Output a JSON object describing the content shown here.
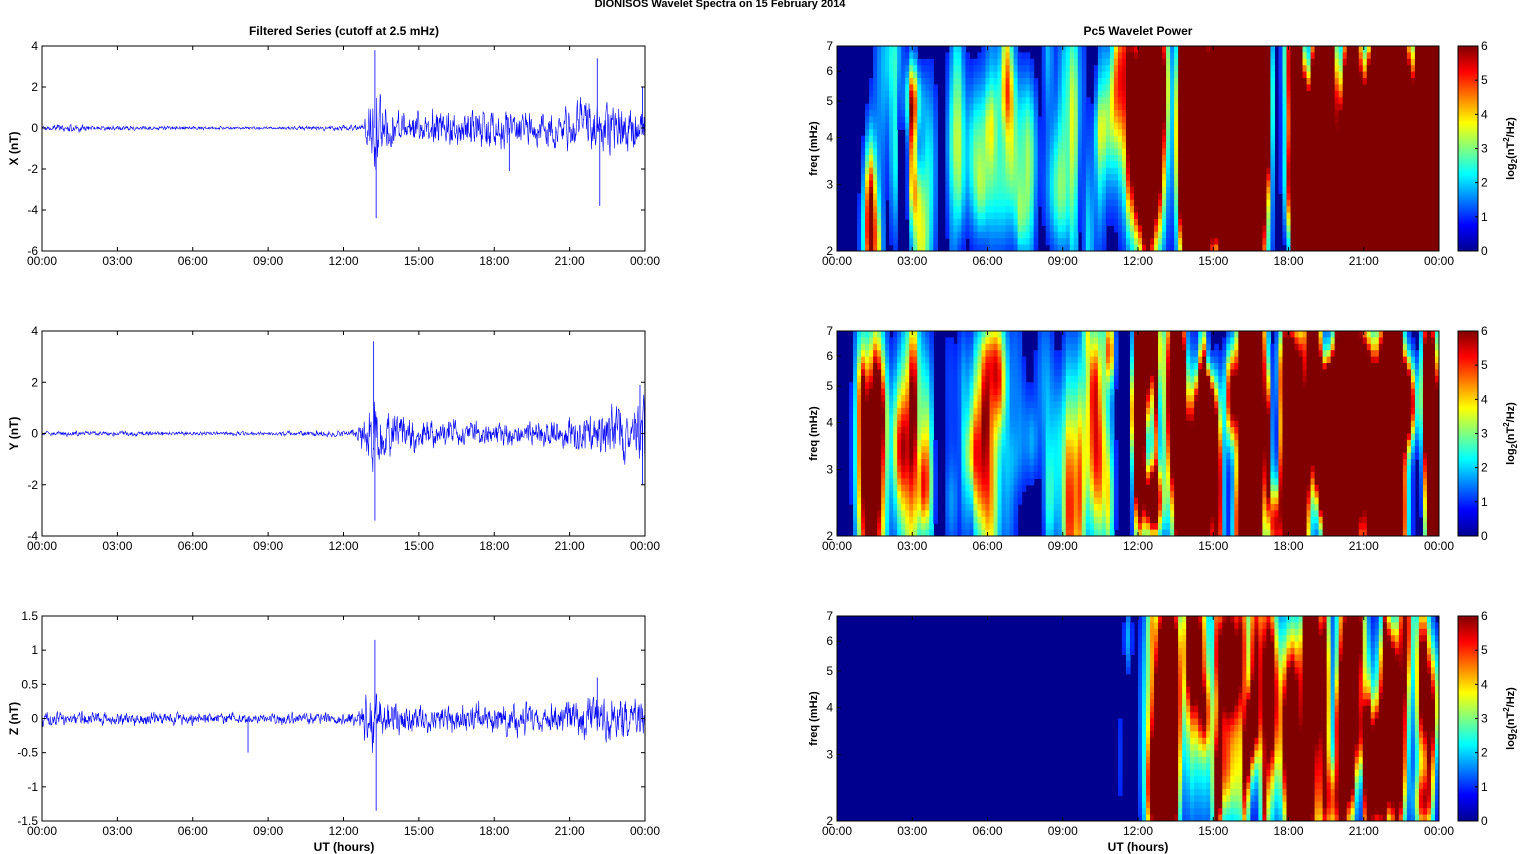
{
  "figure": {
    "suptitle": "DIONISOS Wavelet Spectra on 15 February  2014",
    "left_title": "Filtered Series (cutoff at 2.5 mHz)",
    "right_title": "Pc5 Wavelet Power",
    "xlabel": "UT (hours)"
  },
  "colors": {
    "trace": "#0000ff",
    "jet_low": "#00008f",
    "jet_high": "#800000"
  },
  "chart_data": [
    {
      "type": "line",
      "component": "X",
      "ylabel": "X (nT)",
      "ylim": [
        -6,
        4
      ],
      "yticks": [
        "4",
        "2",
        "0",
        "-2",
        "-4",
        "-6"
      ],
      "xticks": [
        "00:00",
        "03:00",
        "06:00",
        "09:00",
        "12:00",
        "15:00",
        "18:00",
        "21:00",
        "00:00"
      ],
      "x_range_hours": [
        0,
        24
      ],
      "envelope": [
        [
          0,
          0.1
        ],
        [
          1.2,
          0.3
        ],
        [
          2,
          0.15
        ],
        [
          5,
          0.12
        ],
        [
          9,
          0.08
        ],
        [
          12.8,
          0.2
        ],
        [
          13.2,
          2.5
        ],
        [
          13.3,
          3.8
        ],
        [
          13.6,
          1.2
        ],
        [
          15,
          1.0
        ],
        [
          17,
          1.1
        ],
        [
          18.2,
          1.4
        ],
        [
          19,
          0.9
        ],
        [
          21,
          1.3
        ],
        [
          22,
          2.0
        ],
        [
          22.3,
          1.5
        ],
        [
          23.5,
          1.3
        ],
        [
          24,
          1.0
        ]
      ],
      "spikes": [
        {
          "t": 13.25,
          "v": 3.8
        },
        {
          "t": 13.3,
          "v": -4.4
        },
        {
          "t": 22.1,
          "v": 3.4
        },
        {
          "t": 22.2,
          "v": -3.8
        },
        {
          "t": 18.6,
          "v": -2.1
        },
        {
          "t": 23.9,
          "v": 2.0
        },
        {
          "t": 24,
          "v": -1.2
        }
      ]
    },
    {
      "type": "heatmap",
      "component": "X",
      "ylabel": "freq (mHz)",
      "ylim": [
        2,
        7
      ],
      "yscale": "log",
      "yticks": [
        "2",
        "3",
        "4",
        "5",
        "6",
        "7"
      ],
      "xticks": [
        "00:00",
        "03:00",
        "06:00",
        "09:00",
        "12:00",
        "15:00",
        "18:00",
        "21:00",
        "00:00"
      ],
      "colorbar_label": "log2(nT2/Hz)",
      "clim": [
        0,
        6
      ],
      "colorbar_ticks": [
        "0",
        "1",
        "2",
        "3",
        "4",
        "5",
        "6"
      ],
      "activity": [
        [
          0,
          0
        ],
        [
          0.8,
          0.05
        ],
        [
          1.3,
          0.55
        ],
        [
          1.8,
          0.05
        ],
        [
          3.0,
          0.45
        ],
        [
          4,
          0.05
        ],
        [
          6.1,
          0.15
        ],
        [
          10.2,
          0.15
        ],
        [
          11,
          0.2
        ],
        [
          12,
          0.35
        ],
        [
          12.7,
          0.9
        ],
        [
          13.1,
          1.3
        ],
        [
          24,
          1.3
        ]
      ],
      "seed": 11
    },
    {
      "type": "line",
      "component": "Y",
      "ylabel": "Y (nT)",
      "ylim": [
        -4,
        4
      ],
      "yticks": [
        "4",
        "2",
        "0",
        "-2",
        "-4"
      ],
      "xticks": [
        "00:00",
        "03:00",
        "06:00",
        "09:00",
        "12:00",
        "15:00",
        "18:00",
        "21:00",
        "00:00"
      ],
      "x_range_hours": [
        0,
        24
      ],
      "envelope": [
        [
          0,
          0.1
        ],
        [
          2,
          0.12
        ],
        [
          9,
          0.08
        ],
        [
          12.5,
          0.2
        ],
        [
          13.2,
          2.0
        ],
        [
          13.4,
          1.2
        ],
        [
          15,
          0.7
        ],
        [
          18,
          0.6
        ],
        [
          20,
          0.6
        ],
        [
          22,
          1.0
        ],
        [
          23.5,
          1.4
        ],
        [
          24,
          1.8
        ]
      ],
      "spikes": [
        {
          "t": 13.2,
          "v": 3.6
        },
        {
          "t": 13.25,
          "v": -3.4
        },
        {
          "t": 23.9,
          "v": -2.0
        },
        {
          "t": 23.8,
          "v": 1.9
        }
      ]
    },
    {
      "type": "heatmap",
      "component": "Y",
      "ylabel": "freq (mHz)",
      "ylim": [
        2,
        7
      ],
      "yscale": "log",
      "yticks": [
        "2",
        "3",
        "4",
        "5",
        "6",
        "7"
      ],
      "xticks": [
        "00:00",
        "03:00",
        "06:00",
        "09:00",
        "12:00",
        "15:00",
        "18:00",
        "21:00",
        "00:00"
      ],
      "colorbar_label": "log2(nT2/Hz)",
      "clim": [
        0,
        6
      ],
      "colorbar_ticks": [
        "0",
        "1",
        "2",
        "3",
        "4",
        "5",
        "6"
      ],
      "activity": [
        [
          0,
          0
        ],
        [
          0.8,
          0.05
        ],
        [
          1.3,
          0.45
        ],
        [
          2,
          0.05
        ],
        [
          3.3,
          0.4
        ],
        [
          4.5,
          0.05
        ],
        [
          5.8,
          0.35
        ],
        [
          7,
          0.05
        ],
        [
          10.5,
          0.3
        ],
        [
          11.4,
          0.55
        ],
        [
          12.5,
          0.8
        ],
        [
          13,
          1.1
        ],
        [
          24,
          1.1
        ]
      ],
      "seed": 23
    },
    {
      "type": "line",
      "component": "Z",
      "ylabel": "Z (nT)",
      "ylim": [
        -1.5,
        1.5
      ],
      "yticks": [
        "1.5",
        "1",
        "0.5",
        "0",
        "-0.5",
        "-1",
        "-1.5"
      ],
      "xticks": [
        "00:00",
        "03:00",
        "06:00",
        "09:00",
        "12:00",
        "15:00",
        "18:00",
        "21:00",
        "00:00"
      ],
      "x_range_hours": [
        0,
        24
      ],
      "envelope": [
        [
          0,
          0.15
        ],
        [
          2,
          0.12
        ],
        [
          9,
          0.1
        ],
        [
          12.5,
          0.12
        ],
        [
          13.2,
          0.6
        ],
        [
          13.5,
          0.35
        ],
        [
          15,
          0.25
        ],
        [
          18,
          0.3
        ],
        [
          20,
          0.25
        ],
        [
          22,
          0.4
        ],
        [
          24,
          0.35
        ]
      ],
      "spikes": [
        {
          "t": 13.25,
          "v": 1.15
        },
        {
          "t": 13.3,
          "v": -1.35
        },
        {
          "t": 8.2,
          "v": -0.5
        },
        {
          "t": 22.1,
          "v": 0.6
        }
      ]
    },
    {
      "type": "heatmap",
      "component": "Z",
      "ylabel": "freq (mHz)",
      "ylim": [
        2,
        7
      ],
      "yscale": "log",
      "yticks": [
        "2",
        "3",
        "4",
        "5",
        "6",
        "7"
      ],
      "xticks": [
        "00:00",
        "03:00",
        "06:00",
        "09:00",
        "12:00",
        "15:00",
        "18:00",
        "21:00",
        "00:00"
      ],
      "colorbar_label": "log2(nT2/Hz)",
      "clim": [
        0,
        6
      ],
      "colorbar_ticks": [
        "0",
        "1",
        "2",
        "3",
        "4",
        "5",
        "6"
      ],
      "activity": [
        [
          0,
          0
        ],
        [
          11,
          0
        ],
        [
          11.6,
          0.15
        ],
        [
          12.5,
          0.2
        ],
        [
          13.0,
          0.75
        ],
        [
          13.6,
          0.5
        ],
        [
          16,
          0.45
        ],
        [
          18,
          0.45
        ],
        [
          21.5,
          0.6
        ],
        [
          23,
          0.5
        ],
        [
          24,
          0.45
        ]
      ],
      "seed": 37
    }
  ]
}
